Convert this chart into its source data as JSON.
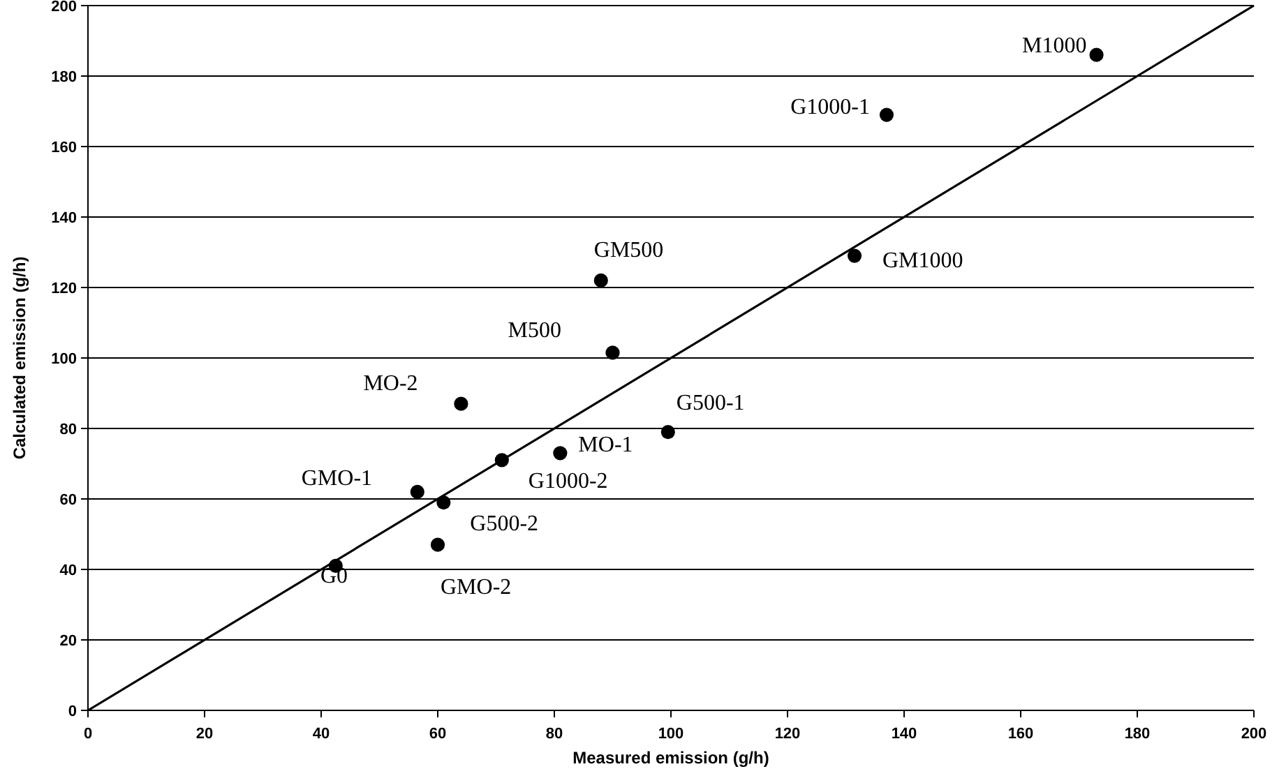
{
  "chart_data": {
    "type": "scatter",
    "xlabel": "Measured emission (g/h)",
    "ylabel": "Calculated emission (g/h)",
    "xlim": [
      0,
      200
    ],
    "ylim": [
      0,
      200
    ],
    "xticks": [
      0,
      20,
      40,
      60,
      80,
      100,
      120,
      140,
      160,
      180,
      200
    ],
    "yticks": [
      0,
      20,
      40,
      60,
      80,
      100,
      120,
      140,
      160,
      180,
      200
    ],
    "grid": "y",
    "marker": "circle",
    "series": [
      {
        "color": "#000000",
        "x": [
          42.5,
          56.5,
          61,
          60,
          71,
          81,
          64,
          99.5,
          90,
          88,
          131.5,
          137,
          173
        ],
        "values": [
          41,
          62,
          59,
          47,
          71,
          73,
          87,
          79,
          101.5,
          122,
          129,
          169,
          186
        ]
      },
      {
        "type": "line",
        "color": "#000000",
        "marker": "none",
        "line_style": "solid",
        "x": [
          0,
          200
        ],
        "values": [
          0,
          200
        ]
      }
    ],
    "annotations": [
      {
        "text": "G0",
        "x": 42.5,
        "y": 41
      },
      {
        "text": "GMO-1",
        "x": 56.5,
        "y": 62
      },
      {
        "text": "G500-2",
        "x": 61,
        "y": 59
      },
      {
        "text": "GMO-2",
        "x": 60,
        "y": 47
      },
      {
        "text": "G1000-2",
        "x": 71,
        "y": 71
      },
      {
        "text": "MO-1",
        "x": 81,
        "y": 73
      },
      {
        "text": "MO-2",
        "x": 64,
        "y": 87
      },
      {
        "text": "G500-1",
        "x": 99.5,
        "y": 79
      },
      {
        "text": "M500",
        "x": 90,
        "y": 101.5
      },
      {
        "text": "GM500",
        "x": 88,
        "y": 122
      },
      {
        "text": "GM1000",
        "x": 131.5,
        "y": 129
      },
      {
        "text": "G1000-1",
        "x": 137,
        "y": 169
      },
      {
        "text": "M1000",
        "x": 173,
        "y": 186
      }
    ]
  }
}
